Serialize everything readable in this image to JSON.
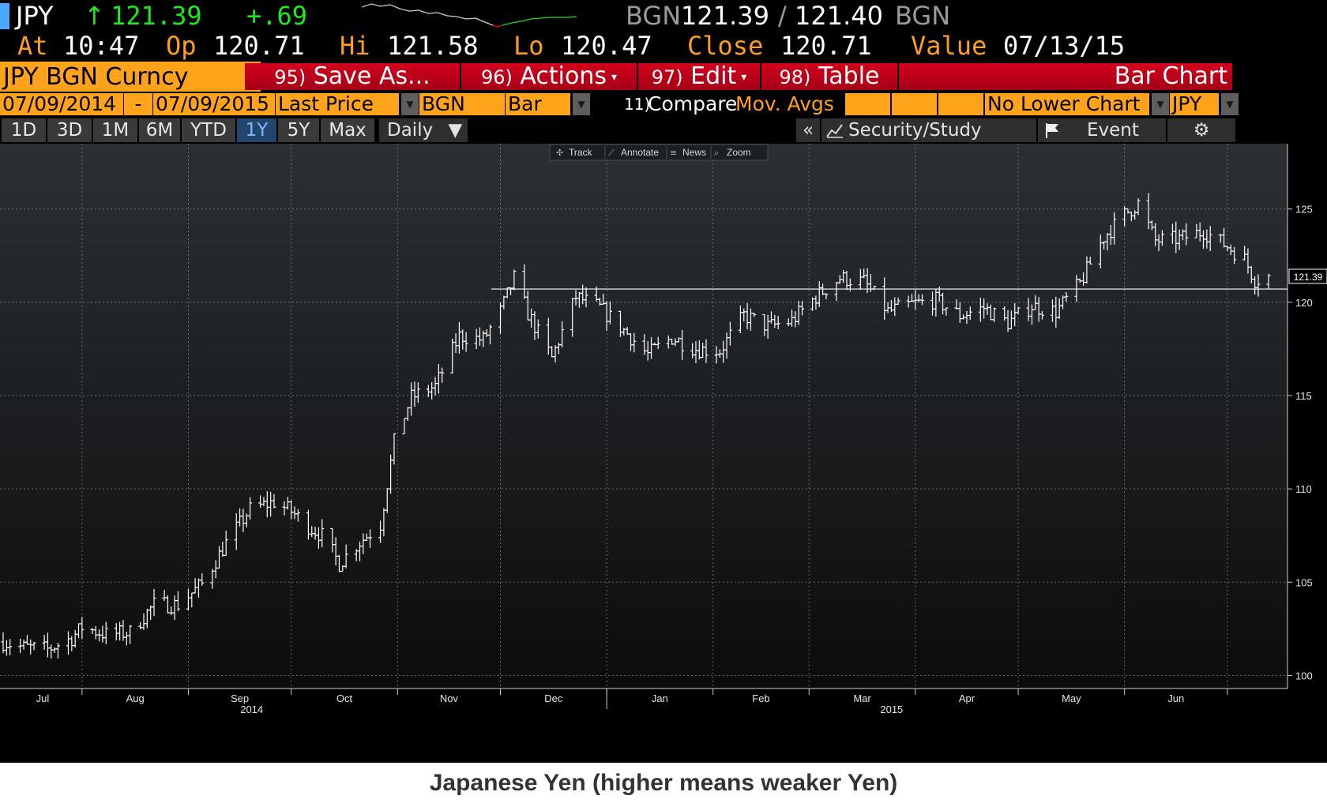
{
  "header": {
    "ticker": "JPY",
    "change_arrow": "↑",
    "last_price": "121.39",
    "change": "+.69",
    "source_left": "BGN",
    "bid": "121.39",
    "separator": "/",
    "ask": "121.40",
    "source_right": "BGN",
    "at_label": "At",
    "at_value": "10:47",
    "op_label": "Op",
    "op_value": "120.71",
    "hi_label": "Hi",
    "hi_value": "121.58",
    "lo_label": "Lo",
    "lo_value": "120.47",
    "close_label": "Close",
    "close_value": "120.71",
    "value_label": "Value",
    "value_date": "07/13/15"
  },
  "menubar": {
    "security": "JPY BGN Curncy",
    "save_as": {
      "num": "95)",
      "label": "Save As..."
    },
    "actions": {
      "num": "96)",
      "label": "Actions"
    },
    "edit": {
      "num": "97)",
      "label": "Edit"
    },
    "table": {
      "num": "98)",
      "label": "Table"
    },
    "view_title": "Bar Chart"
  },
  "settings": {
    "start_date": "07/09/2014",
    "dash": "-",
    "end_date": "07/09/2015",
    "field": "Last Price",
    "source": "BGN",
    "style": "Bar",
    "compare_num": "11)",
    "compare_label": "Compare",
    "mov_avgs": "Mov. Avgs",
    "lower_chart": "No Lower Chart",
    "currency": "JPY"
  },
  "range_buttons": [
    "1D",
    "3D",
    "1M",
    "6M",
    "YTD",
    "1Y",
    "5Y",
    "Max"
  ],
  "active_range": "1Y",
  "periodicity": "Daily",
  "periodicity_arrow": "▼",
  "toolbar": {
    "collapse": "«",
    "security_study": "Security/Study",
    "event": "Event",
    "settings_icon": "⚙"
  },
  "chart_tools": [
    "Track",
    "Annotate",
    "News",
    "Zoom"
  ],
  "caption": "Japanese Yen (higher means weaker Yen)",
  "colors": {
    "background_top": "#2b3035",
    "background_bottom": "#0c0c0c",
    "bars": "#ffffff",
    "accent_orange": "#ffa31a",
    "accent_red": "#d3001c",
    "price_up": "#1ee81e"
  },
  "chart_data": {
    "type": "bar",
    "subtype": "ohlc",
    "x_labels": [
      "Jul",
      "Aug",
      "Sep",
      "Oct",
      "Nov",
      "Dec",
      "Jan",
      "Feb",
      "Mar",
      "Apr",
      "May",
      "Jun"
    ],
    "year_labels": [
      "2014",
      "2015"
    ],
    "y_ticks": [
      100,
      105,
      110,
      115,
      120,
      125
    ],
    "ylim": [
      99.3,
      128.5
    ],
    "last_price_label": "121.39",
    "reference_line": 120.71,
    "grid": true,
    "series": [
      {
        "points": [
          [
            "07-09",
            101.8
          ],
          [
            "07-15",
            101.5
          ],
          [
            "07-22",
            101.4
          ],
          [
            "07-29",
            102.0
          ],
          [
            "08-01",
            102.6
          ],
          [
            "08-08",
            102.2
          ],
          [
            "08-15",
            102.3
          ],
          [
            "08-22",
            103.8
          ],
          [
            "08-29",
            103.8
          ],
          [
            "09-05",
            104.9
          ],
          [
            "09-12",
            107.1
          ],
          [
            "09-19",
            108.9
          ],
          [
            "09-26",
            109.3
          ],
          [
            "10-01",
            108.8
          ],
          [
            "10-06",
            108.0
          ],
          [
            "10-10",
            107.5
          ],
          [
            "10-15",
            106.0
          ],
          [
            "10-20",
            107.0
          ],
          [
            "10-27",
            108.1
          ],
          [
            "10-31",
            112.5
          ],
          [
            "11-05",
            114.9
          ],
          [
            "11-12",
            115.5
          ],
          [
            "11-19",
            118.2
          ],
          [
            "11-26",
            118.0
          ],
          [
            "12-01",
            119.5
          ],
          [
            "12-05",
            121.3
          ],
          [
            "12-09",
            119.4
          ],
          [
            "12-16",
            117.0
          ],
          [
            "12-23",
            120.3
          ],
          [
            "12-30",
            119.7
          ],
          [
            "01-06",
            118.5
          ],
          [
            "01-13",
            117.2
          ],
          [
            "01-20",
            118.1
          ],
          [
            "01-27",
            117.5
          ],
          [
            "02-03",
            117.4
          ],
          [
            "02-10",
            119.3
          ],
          [
            "02-17",
            118.7
          ],
          [
            "02-24",
            119.0
          ],
          [
            "03-03",
            120.3
          ],
          [
            "03-10",
            121.3
          ],
          [
            "03-17",
            121.1
          ],
          [
            "03-24",
            119.5
          ],
          [
            "03-31",
            119.9
          ],
          [
            "04-07",
            120.1
          ],
          [
            "04-14",
            119.3
          ],
          [
            "04-21",
            119.7
          ],
          [
            "04-28",
            118.9
          ],
          [
            "05-05",
            119.8
          ],
          [
            "05-12",
            119.5
          ],
          [
            "05-19",
            121.0
          ],
          [
            "05-26",
            123.5
          ],
          [
            "06-01",
            124.7
          ],
          [
            "06-05",
            125.3
          ],
          [
            "06-10",
            123.3
          ],
          [
            "06-17",
            123.4
          ],
          [
            "06-24",
            123.8
          ],
          [
            "07-01",
            123.0
          ],
          [
            "07-06",
            122.3
          ],
          [
            "07-09",
            121.2
          ],
          [
            "07-13",
            121.39
          ]
        ]
      }
    ]
  }
}
